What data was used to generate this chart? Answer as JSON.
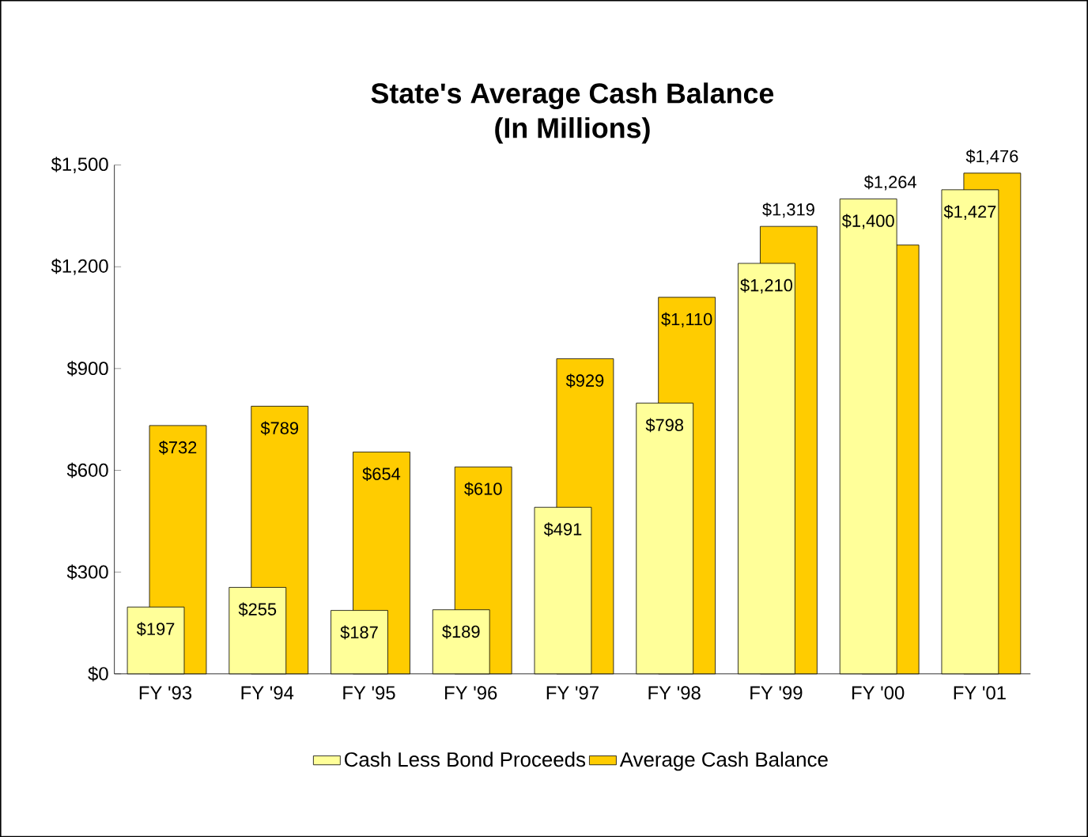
{
  "chart_data": {
    "type": "bar",
    "title": "State's Average Cash Balance",
    "subtitle": "(In Millions)",
    "categories": [
      "FY '93",
      "FY '94",
      "FY '95",
      "FY '96",
      "FY '97",
      "FY '98",
      "FY '99",
      "FY '00",
      "FY '01"
    ],
    "series": [
      {
        "name": "Cash Less Bond Proceeds",
        "color": "#ffff99",
        "values": [
          197,
          255,
          187,
          189,
          491,
          798,
          1210,
          1400,
          1427
        ],
        "value_labels": [
          "$197",
          "$255",
          "$187",
          "$189",
          "$491",
          "$798",
          "$1,210",
          "$1,400",
          "$1,427"
        ]
      },
      {
        "name": "Average Cash Balance",
        "color": "#ffcc00",
        "values": [
          732,
          789,
          654,
          610,
          929,
          1110,
          1319,
          1264,
          1476
        ],
        "value_labels": [
          "$732",
          "$789",
          "$654",
          "$610",
          "$929",
          "$1,110",
          "$1,319",
          "$1,264",
          "$1,476"
        ]
      }
    ],
    "ylim": [
      0,
      1500
    ],
    "yticks": [
      {
        "value": 0,
        "label": "$0"
      },
      {
        "value": 300,
        "label": "$300"
      },
      {
        "value": 600,
        "label": "$600"
      },
      {
        "value": 900,
        "label": "$900"
      },
      {
        "value": 1200,
        "label": "$1,200"
      },
      {
        "value": 1500,
        "label": "$1,500"
      }
    ],
    "grid": false,
    "legend": "bottom"
  }
}
